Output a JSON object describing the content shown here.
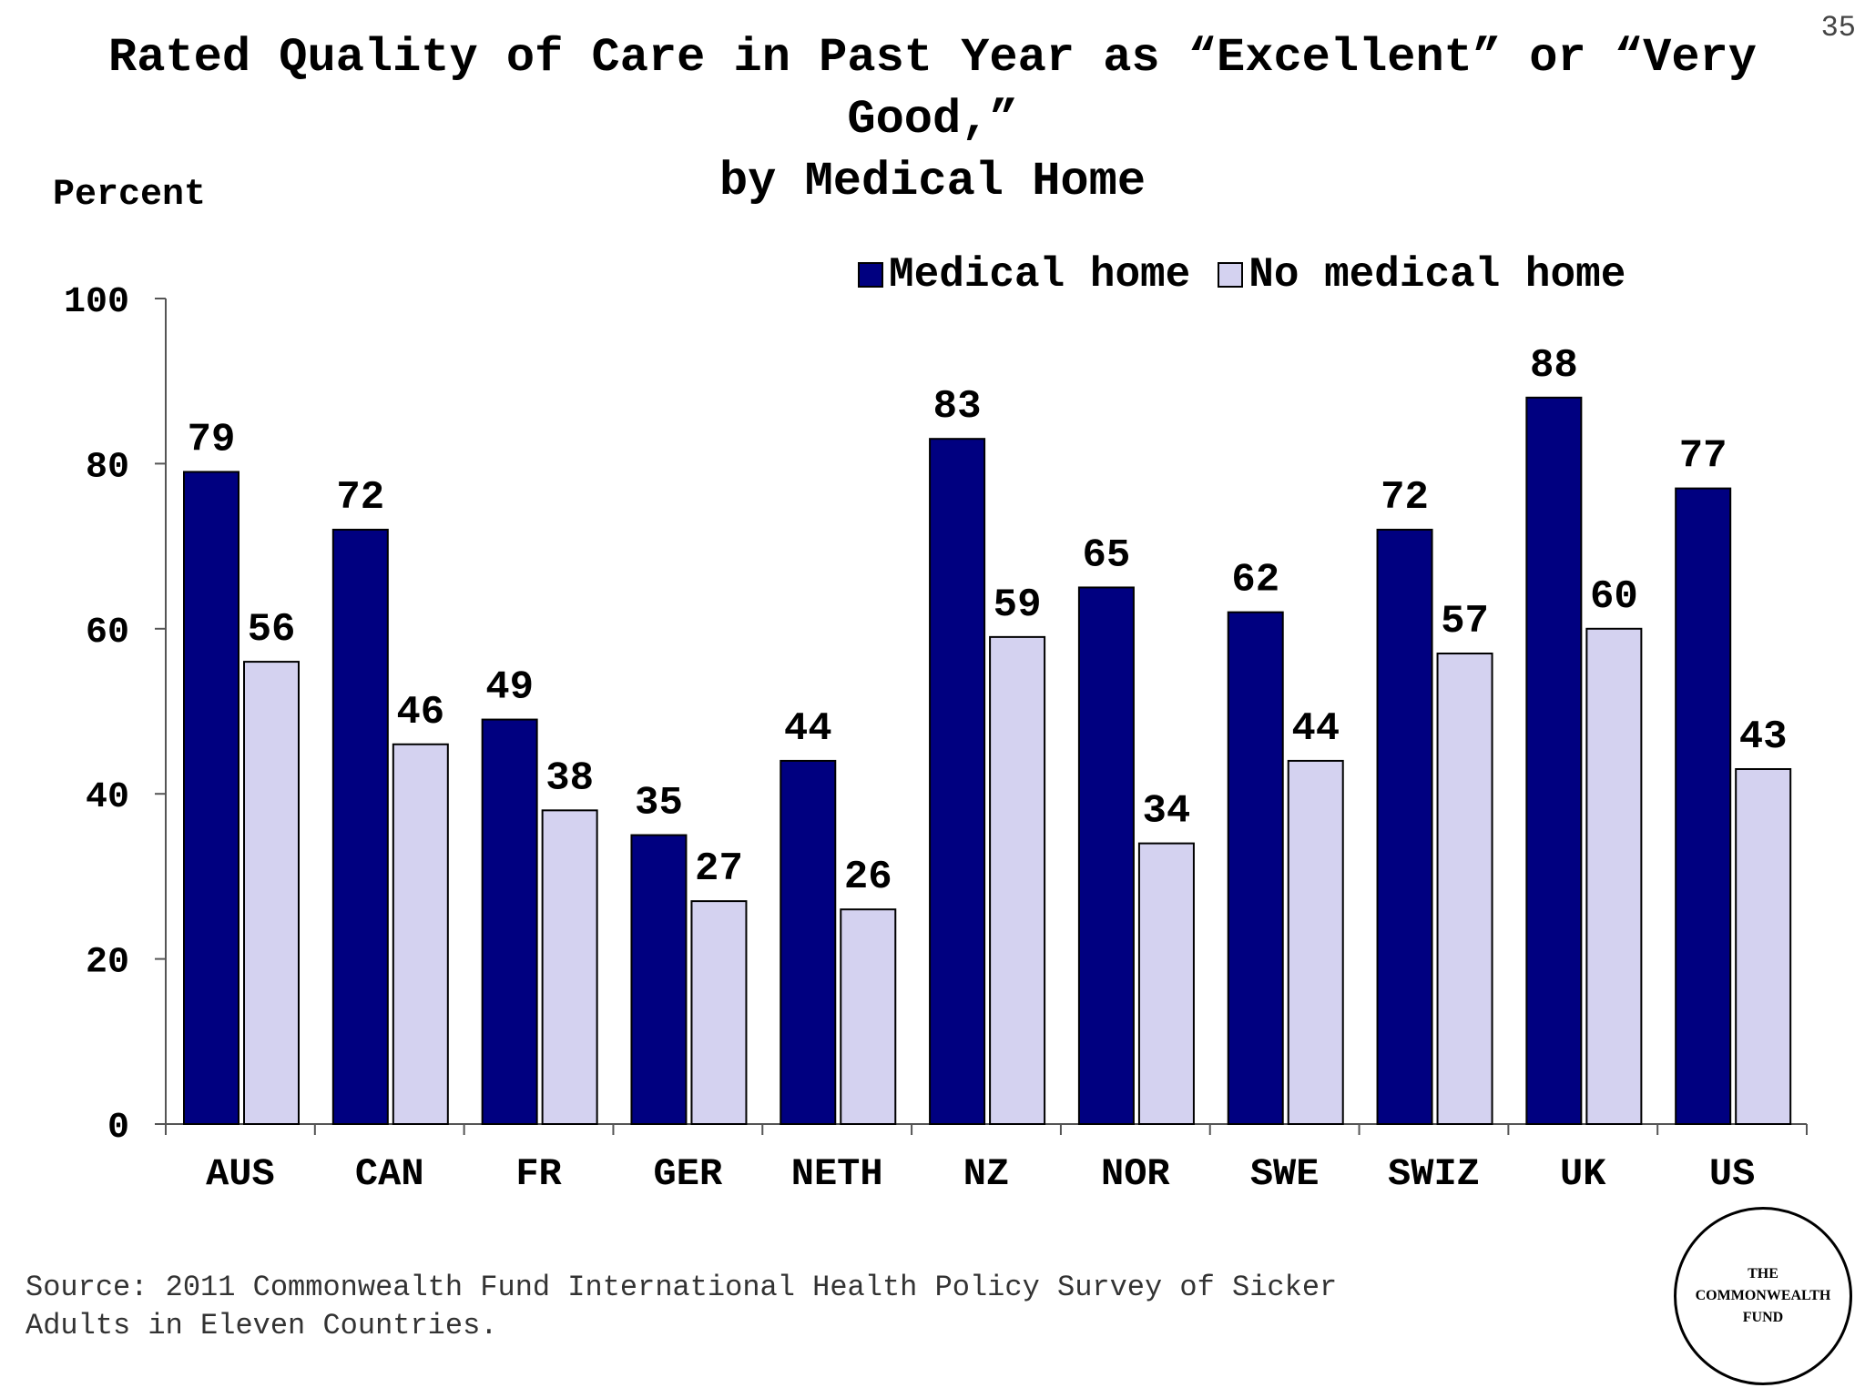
{
  "slide_number": "35",
  "title": {
    "line1": "Rated Quality of Care in Past Year as “Excellent” or “Very",
    "line2": "Good,”",
    "line3": "by Medical Home"
  },
  "y_unit_label": "Percent",
  "source": {
    "line1": "Source: 2011 Commonwealth Fund International Health Policy Survey of Sicker",
    "line2": "Adults in Eleven Countries."
  },
  "logo": {
    "line1": "THE",
    "line2": "COMMONWEALTH",
    "line3": "FUND"
  },
  "colors": {
    "medical_home": "#000080",
    "no_medical_home": "#d4d2f0"
  },
  "chart_data": {
    "type": "bar",
    "title": "Rated Quality of Care in Past Year as “Excellent” or “Very Good,” by Medical Home",
    "ylabel": "Percent",
    "xlabel": "",
    "categories": [
      "AUS",
      "CAN",
      "FR",
      "GER",
      "NETH",
      "NZ",
      "NOR",
      "SWE",
      "SWIZ",
      "UK",
      "US"
    ],
    "series": [
      {
        "name": "Medical home",
        "color": "#000080",
        "values": [
          79,
          72,
          49,
          35,
          44,
          83,
          65,
          62,
          72,
          88,
          77
        ]
      },
      {
        "name": "No medical home",
        "color": "#d4d2f0",
        "values": [
          56,
          46,
          38,
          27,
          26,
          59,
          34,
          44,
          57,
          60,
          43
        ]
      }
    ],
    "ylim": [
      0,
      100
    ],
    "yticks": [
      0,
      20,
      40,
      60,
      80,
      100
    ],
    "grid": false,
    "legend": "top-right",
    "data_labels": true
  }
}
